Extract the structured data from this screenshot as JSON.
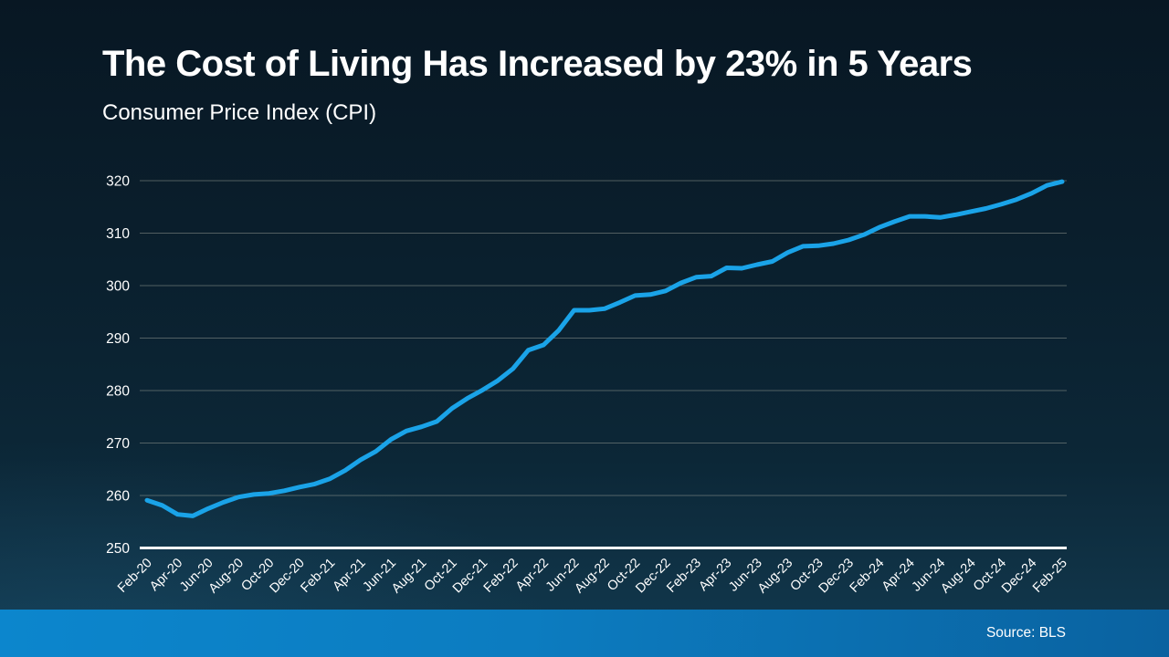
{
  "slide": {
    "title": "The Cost of Living Has Increased by 23% in 5 Years",
    "subtitle": "Consumer Price Index (CPI)"
  },
  "footer": {
    "source_label": "Source: BLS"
  },
  "colors": {
    "background_top": "#081723",
    "background_bottom": "#123A50",
    "line": "#1AA3E8",
    "gridline": "#8C948C",
    "axis_baseline": "#FFFFFF",
    "text": "#FFFFFF",
    "footer_bar_left": "#0C86CD",
    "footer_bar_right": "#0A62A0"
  },
  "chart_data": {
    "type": "line",
    "title": "The Cost of Living Has Increased by 23% in 5 Years",
    "subtitle": "Consumer Price Index (CPI)",
    "grid": "horizontal",
    "legend": "none",
    "ylim": [
      250,
      320
    ],
    "yticks": [
      250,
      260,
      270,
      280,
      290,
      300,
      310,
      320
    ],
    "x_tick_every": 2,
    "x_tick_labels": [
      "Feb-20",
      "Apr-20",
      "Jun-20",
      "Aug-20",
      "Oct-20",
      "Dec-20",
      "Feb-21",
      "Apr-21",
      "Jun-21",
      "Aug-21",
      "Oct-21",
      "Dec-21",
      "Feb-22",
      "Apr-22",
      "Jun-22",
      "Aug-22",
      "Oct-22",
      "Dec-22",
      "Feb-23",
      "Apr-23",
      "Jun-23",
      "Aug-23",
      "Oct-23",
      "Dec-23",
      "Feb-24",
      "Apr-24",
      "Jun-24",
      "Aug-24",
      "Oct-24",
      "Dec-24",
      "Feb-25"
    ],
    "series": [
      {
        "name": "Consumer Price Index (CPI)",
        "values": [
          259.1,
          258.1,
          256.4,
          256.1,
          257.5,
          258.7,
          259.7,
          260.2,
          260.4,
          260.9,
          261.6,
          262.2,
          263.2,
          264.8,
          266.8,
          268.4,
          270.7,
          272.3,
          273.1,
          274.1,
          276.6,
          278.5,
          280.1,
          281.9,
          284.2,
          287.7,
          288.7,
          291.5,
          295.3,
          295.3,
          295.6,
          296.8,
          298.1,
          298.3,
          299.0,
          300.5,
          301.6,
          301.8,
          303.4,
          303.3,
          304.0,
          304.6,
          306.3,
          307.5,
          307.6,
          308.0,
          308.7,
          309.7,
          311.1,
          312.2,
          313.2,
          313.2,
          313.0,
          313.5,
          314.1,
          314.7,
          315.5,
          316.4,
          317.6,
          319.1,
          319.8
        ]
      }
    ]
  }
}
